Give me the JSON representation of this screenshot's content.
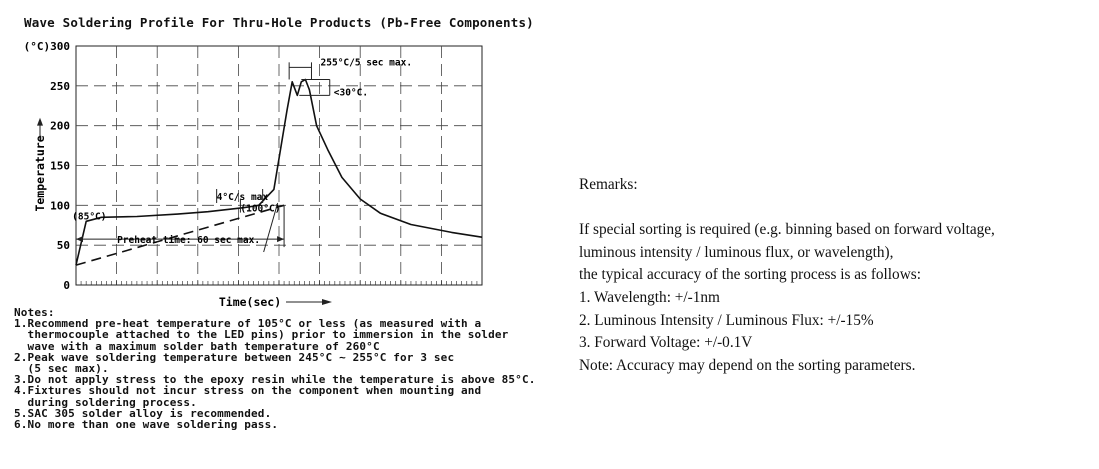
{
  "chart_title": "Wave Soldering Profile For Thru-Hole Products (Pb-Free Components)",
  "chart_data": {
    "type": "line",
    "title": "Wave Soldering Profile For Thru-Hole Products (Pb-Free Components)",
    "xlabel": "Time(sec)",
    "ylabel": "Temperature",
    "y_unit_label": "(°C)",
    "ylim": [
      0,
      300
    ],
    "yticks": [
      0,
      50,
      100,
      150,
      200,
      250,
      300
    ],
    "ytick_labels": [
      "0",
      "50",
      "100",
      "150",
      "200",
      "250",
      "(°C)300"
    ],
    "grid": true,
    "series": [
      {
        "style": "solid",
        "x": [
          0,
          10,
          25,
          60,
          100,
          130,
          165,
          180,
          195,
          208,
          213,
          218,
          222,
          226,
          230,
          237,
          248,
          262,
          280,
          300,
          330,
          370,
          400
        ],
        "y": [
          25,
          80,
          85,
          86,
          89,
          92,
          97,
          100,
          120,
          220,
          255,
          238,
          255,
          258,
          245,
          200,
          170,
          135,
          108,
          90,
          76,
          66,
          60
        ]
      },
      {
        "style": "dashed",
        "x": [
          0,
          205
        ],
        "y": [
          25,
          100
        ]
      }
    ],
    "annotations": [
      {
        "text": "(85°C)",
        "x": 12,
        "y": 86
      },
      {
        "text": "4°C/s max",
        "x": 110,
        "y": 123
      },
      {
        "text": "(100°C)",
        "x": 160,
        "y": 111
      },
      {
        "text": "Preheat time: 60 sec max.",
        "x": 105,
        "y": 30
      },
      {
        "text": "255°C/5 sec max.",
        "x": 237,
        "y": 282
      },
      {
        "text": "<30°C.",
        "x": 252,
        "y": 243
      }
    ]
  },
  "notes_lines": [
    "Notes:",
    "1.Recommend pre-heat temperature of 105°C or less (as measured with a",
    "  thermocouple attached to the LED pins) prior to immersion in the solder",
    "  wave with a maximum solder bath temperature of 260°C",
    "2.Peak wave soldering temperature between 245°C ~ 255°C for 3 sec",
    "  (5 sec max).",
    "3.Do not apply stress to the epoxy resin while the temperature is above 85°C.",
    "4.Fixtures should not incur stress on the component when mounting and",
    "  during soldering process.",
    "5.SAC 305 solder alloy is recommended.",
    "6.No more than one wave soldering pass."
  ],
  "remarks": {
    "heading": "Remarks:",
    "intro_lines": [
      "If special sorting is required (e.g. binning based on forward voltage,",
      "luminous intensity / luminous flux, or wavelength),",
      "the typical accuracy of the sorting process is as follows:"
    ],
    "items": [
      "1. Wavelength: +/-1nm",
      "2. Luminous Intensity / Luminous Flux: +/-15%",
      "3. Forward Voltage: +/-0.1V"
    ],
    "note": "Note: Accuracy may depend on the sorting parameters."
  }
}
